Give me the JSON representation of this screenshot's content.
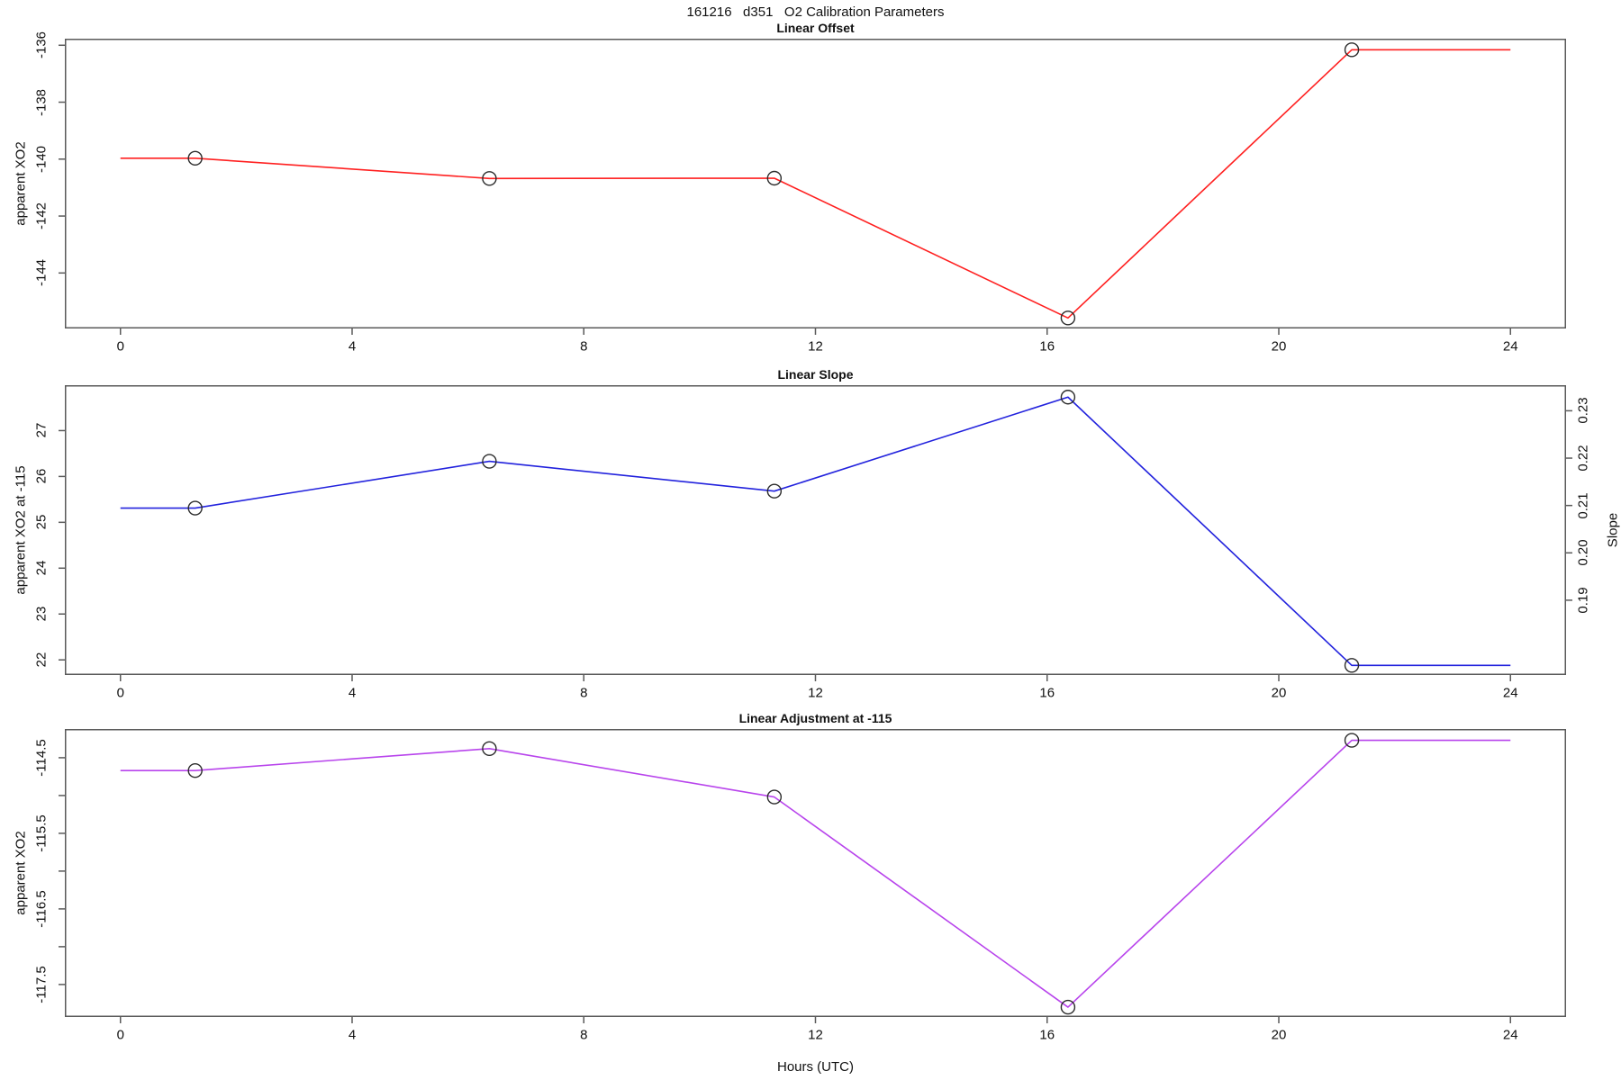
{
  "header": {
    "title": "161216   d351   O2 Calibration Parameters"
  },
  "xlabel": "Hours (UTC)",
  "style": {
    "axis_color": "#5a5a5a",
    "marker_color": "#2b2b2b",
    "text_color": "#111111",
    "panel1_line_color": "#ff2020",
    "panel2_line_color": "#2222dd",
    "panel3_line_color": "#b844ec"
  },
  "chart_data": [
    {
      "type": "line",
      "title": "Linear Offset",
      "ylabel": "apparent XO2",
      "color": "#ff2020",
      "xlim": [
        -0.96,
        24.96
      ],
      "ylim": [
        -145.95,
        -135.77
      ],
      "x_ticks": [
        {
          "v": 0,
          "label": "0"
        },
        {
          "v": 4,
          "label": "4"
        },
        {
          "v": 8,
          "label": "8"
        },
        {
          "v": 12,
          "label": "12"
        },
        {
          "v": 16,
          "label": "16"
        },
        {
          "v": 20,
          "label": "20"
        },
        {
          "v": 24,
          "label": "24"
        }
      ],
      "y_ticks": [
        {
          "v": -136,
          "label": "-136"
        },
        {
          "v": -138,
          "label": "-138"
        },
        {
          "v": -140,
          "label": "-140"
        },
        {
          "v": -142,
          "label": "-142"
        },
        {
          "v": -144,
          "label": "-144"
        }
      ],
      "line": {
        "x": [
          0,
          1.29,
          6.37,
          11.29,
          16.36,
          21.26,
          24
        ],
        "y": [
          -139.97,
          -139.97,
          -140.68,
          -140.67,
          -145.58,
          -136.16,
          -136.16
        ]
      },
      "markers": {
        "x": [
          1.29,
          6.37,
          11.29,
          16.36,
          21.26
        ],
        "y": [
          -139.97,
          -140.68,
          -140.67,
          -145.58,
          -136.16
        ]
      }
    },
    {
      "type": "line",
      "title": "Linear Slope",
      "ylabel": "apparent XO2 at -115",
      "y2label": "Slope",
      "color": "#2222dd",
      "xlim": [
        -0.96,
        24.96
      ],
      "ylim": [
        21.67,
        27.99
      ],
      "ylim2": [
        0.17421,
        0.2354
      ],
      "x_ticks": [
        {
          "v": 0,
          "label": "0"
        },
        {
          "v": 4,
          "label": "4"
        },
        {
          "v": 8,
          "label": "8"
        },
        {
          "v": 12,
          "label": "12"
        },
        {
          "v": 16,
          "label": "16"
        },
        {
          "v": 20,
          "label": "20"
        },
        {
          "v": 24,
          "label": "24"
        }
      ],
      "y_ticks": [
        {
          "v": 27,
          "label": "27"
        },
        {
          "v": 26,
          "label": "26"
        },
        {
          "v": 25,
          "label": "25"
        },
        {
          "v": 24,
          "label": "24"
        },
        {
          "v": 23,
          "label": "23"
        },
        {
          "v": 22,
          "label": "22"
        }
      ],
      "y2_ticks": [
        {
          "v": 0.23,
          "label": "0.23"
        },
        {
          "v": 0.22,
          "label": "0.22"
        },
        {
          "v": 0.21,
          "label": "0.21"
        },
        {
          "v": 0.2,
          "label": "0.20"
        },
        {
          "v": 0.19,
          "label": "0.19"
        }
      ],
      "line": {
        "x": [
          0,
          1.29,
          6.37,
          11.29,
          16.36,
          21.26,
          24
        ],
        "y": [
          25.31,
          25.31,
          26.33,
          25.68,
          27.73,
          21.88,
          21.88
        ]
      },
      "markers": {
        "x": [
          1.29,
          6.37,
          11.29,
          16.36,
          21.26
        ],
        "y": [
          25.31,
          26.33,
          25.68,
          27.73,
          21.88
        ]
      },
      "marker_slope_values": [
        0.2095,
        0.2193,
        0.2131,
        0.2328,
        0.1762
      ]
    },
    {
      "type": "line",
      "title": "Linear Adjustment at -115",
      "ylabel": "apparent XO2",
      "color": "#b844ec",
      "xlim": [
        -0.96,
        24.96
      ],
      "ylim": [
        -117.93,
        -114.12
      ],
      "x_ticks": [
        {
          "v": 0,
          "label": "0"
        },
        {
          "v": 4,
          "label": "4"
        },
        {
          "v": 8,
          "label": "8"
        },
        {
          "v": 12,
          "label": "12"
        },
        {
          "v": 16,
          "label": "16"
        },
        {
          "v": 20,
          "label": "20"
        },
        {
          "v": 24,
          "label": "24"
        }
      ],
      "y_ticks": [
        {
          "v": -114.5,
          "label": "-114.5"
        },
        {
          "v": -115,
          "label": ""
        },
        {
          "v": -115.5,
          "label": "-115.5"
        },
        {
          "v": -116,
          "label": ""
        },
        {
          "v": -116.5,
          "label": "-116.5"
        },
        {
          "v": -117,
          "label": ""
        },
        {
          "v": -117.5,
          "label": "-117.5"
        }
      ],
      "line": {
        "x": [
          0,
          1.29,
          6.37,
          11.29,
          16.36,
          21.26,
          24
        ],
        "y": [
          -114.67,
          -114.67,
          -114.38,
          -115.02,
          -117.8,
          -114.27,
          -114.27
        ]
      },
      "markers": {
        "x": [
          1.29,
          6.37,
          11.29,
          16.36,
          21.26
        ],
        "y": [
          -114.67,
          -114.38,
          -115.02,
          -117.8,
          -114.27
        ]
      }
    }
  ]
}
